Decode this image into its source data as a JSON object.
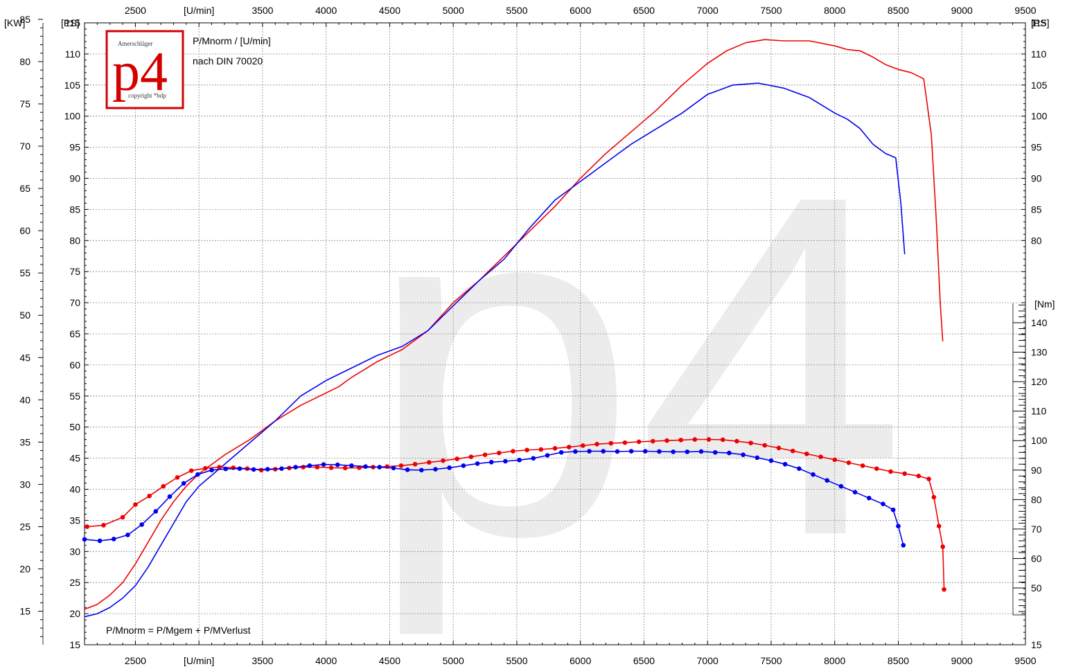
{
  "chart_data": {
    "type": "line",
    "annotations": {
      "formula_title": "P/Mnorm / [U/min]",
      "norm": "nach DIN 70020",
      "equation": "P/Mnorm = P/Mgem + P/MVerlust"
    },
    "logo": {
      "brand": "Amerschläger",
      "mark": "p4",
      "copyright": "copyright *bdp"
    },
    "watermark": "p4",
    "x_axis": {
      "label": "[U/min]",
      "range": [
        2100,
        9500
      ],
      "ticks": [
        2500,
        3000,
        3500,
        4000,
        4500,
        5000,
        5500,
        6000,
        6500,
        7000,
        7500,
        8000,
        8500,
        9000,
        9500
      ],
      "tick_labels": [
        "2500",
        "[U/min]",
        "3500",
        "4000",
        "4500",
        "5000",
        "5500",
        "6000",
        "6500",
        "7000",
        "7500",
        "8000",
        "8500",
        "9000",
        "9500"
      ]
    },
    "y_axis_ps": {
      "label": "[PS]",
      "range": [
        15,
        115
      ],
      "ticks": [
        15,
        20,
        25,
        30,
        35,
        40,
        45,
        50,
        55,
        60,
        65,
        70,
        75,
        80,
        85,
        90,
        95,
        100,
        105,
        110,
        115
      ],
      "tick_labels_left": [
        "15",
        "20",
        "25",
        "30",
        "35",
        "40",
        "45",
        "50",
        "55",
        "60",
        "65",
        "70",
        "75",
        "80",
        "85",
        "90",
        "95",
        "100",
        "105",
        "110",
        "115"
      ],
      "tick_labels_right": [
        "15",
        "",
        "",
        "",
        "",
        "",
        "",
        "",
        "",
        "",
        "",
        "",
        "",
        "80",
        "85",
        "90",
        "95",
        "100",
        "105",
        "110",
        "115"
      ]
    },
    "y_axis_kw": {
      "label": "[KW]",
      "ticks": [
        15,
        20,
        25,
        30,
        35,
        40,
        45,
        50,
        55,
        60,
        65,
        70,
        75,
        80,
        85
      ],
      "tick_labels": [
        "15",
        "20",
        "25",
        "30",
        "35",
        "40",
        "45",
        "50",
        "55",
        "60",
        "65",
        "70",
        "75",
        "80",
        "85"
      ]
    },
    "y_axis_nm": {
      "label": "[Nm]",
      "ticks": [
        50,
        60,
        70,
        80,
        90,
        100,
        110,
        120,
        130,
        140
      ],
      "tick_labels": [
        "50",
        "60",
        "70",
        "80",
        "90",
        "100",
        "110",
        "120",
        "130",
        "140"
      ]
    },
    "grid": true,
    "colors": {
      "red": "#ee0000",
      "blue": "#0000ee",
      "watermark": "#ececec",
      "logo": "#d40000"
    },
    "series": [
      {
        "quantity": "power",
        "unit": "PS",
        "color": "#ee0000",
        "markers": false,
        "points": [
          [
            2100,
            20.7
          ],
          [
            2200,
            21.5
          ],
          [
            2300,
            23.0
          ],
          [
            2400,
            25.0
          ],
          [
            2500,
            28.0
          ],
          [
            2600,
            31.5
          ],
          [
            2700,
            35.0
          ],
          [
            2800,
            38.0
          ],
          [
            2900,
            40.5
          ],
          [
            3000,
            42.5
          ],
          [
            3200,
            45.5
          ],
          [
            3400,
            48.0
          ],
          [
            3600,
            51.0
          ],
          [
            3800,
            53.5
          ],
          [
            4000,
            55.5
          ],
          [
            4100,
            56.5
          ],
          [
            4200,
            58.0
          ],
          [
            4400,
            60.5
          ],
          [
            4600,
            62.5
          ],
          [
            4800,
            65.5
          ],
          [
            5000,
            70.0
          ],
          [
            5200,
            73.5
          ],
          [
            5400,
            77.5
          ],
          [
            5600,
            81.5
          ],
          [
            5800,
            85.5
          ],
          [
            6000,
            90.0
          ],
          [
            6200,
            94.0
          ],
          [
            6400,
            97.5
          ],
          [
            6600,
            101.0
          ],
          [
            6800,
            105.0
          ],
          [
            7000,
            108.5
          ],
          [
            7150,
            110.5
          ],
          [
            7300,
            111.8
          ],
          [
            7450,
            112.3
          ],
          [
            7600,
            112.1
          ],
          [
            7800,
            112.1
          ],
          [
            8000,
            111.3
          ],
          [
            8100,
            110.7
          ],
          [
            8200,
            110.5
          ],
          [
            8300,
            109.5
          ],
          [
            8400,
            108.3
          ],
          [
            8500,
            107.5
          ],
          [
            8600,
            107.0
          ],
          [
            8700,
            106.0
          ],
          [
            8760,
            97.0
          ],
          [
            8800,
            83.0
          ],
          [
            8830,
            70.0
          ],
          [
            8850,
            63.8
          ]
        ]
      },
      {
        "quantity": "power",
        "unit": "PS",
        "color": "#0000ee",
        "markers": false,
        "points": [
          [
            2100,
            19.5
          ],
          [
            2200,
            20.0
          ],
          [
            2300,
            21.0
          ],
          [
            2400,
            22.5
          ],
          [
            2500,
            24.5
          ],
          [
            2600,
            27.5
          ],
          [
            2700,
            31.0
          ],
          [
            2800,
            34.5
          ],
          [
            2900,
            38.0
          ],
          [
            3000,
            40.5
          ],
          [
            3200,
            44.0
          ],
          [
            3400,
            47.5
          ],
          [
            3600,
            51.0
          ],
          [
            3800,
            55.0
          ],
          [
            4000,
            57.5
          ],
          [
            4200,
            59.5
          ],
          [
            4400,
            61.5
          ],
          [
            4600,
            63.0
          ],
          [
            4800,
            65.5
          ],
          [
            5000,
            69.5
          ],
          [
            5200,
            73.5
          ],
          [
            5400,
            77.0
          ],
          [
            5600,
            82.0
          ],
          [
            5800,
            86.5
          ],
          [
            6000,
            89.5
          ],
          [
            6200,
            92.5
          ],
          [
            6400,
            95.5
          ],
          [
            6600,
            98.0
          ],
          [
            6800,
            100.5
          ],
          [
            7000,
            103.5
          ],
          [
            7200,
            105.0
          ],
          [
            7400,
            105.3
          ],
          [
            7600,
            104.5
          ],
          [
            7800,
            103.0
          ],
          [
            8000,
            100.5
          ],
          [
            8100,
            99.5
          ],
          [
            8200,
            98.0
          ],
          [
            8300,
            95.5
          ],
          [
            8400,
            94.0
          ],
          [
            8480,
            93.3
          ],
          [
            8520,
            86.0
          ],
          [
            8550,
            77.8
          ]
        ]
      },
      {
        "quantity": "torque",
        "unit": "Nm",
        "color": "#ee0000",
        "markers": true,
        "points": [
          [
            2120,
            70.8
          ],
          [
            2250,
            71.3
          ],
          [
            2400,
            74.0
          ],
          [
            2500,
            78.3
          ],
          [
            2610,
            81.2
          ],
          [
            2720,
            84.5
          ],
          [
            2830,
            87.5
          ],
          [
            2940,
            89.8
          ],
          [
            3050,
            90.6
          ],
          [
            3160,
            91.0
          ],
          [
            3270,
            90.8
          ],
          [
            3380,
            90.5
          ],
          [
            3490,
            90.0
          ],
          [
            3600,
            90.3
          ],
          [
            3710,
            90.7
          ],
          [
            3820,
            91.0
          ],
          [
            3930,
            91.0
          ],
          [
            4040,
            90.8
          ],
          [
            4150,
            90.7
          ],
          [
            4260,
            90.8
          ],
          [
            4370,
            91.0
          ],
          [
            4480,
            91.2
          ],
          [
            4590,
            91.5
          ],
          [
            4700,
            92.0
          ],
          [
            4810,
            92.6
          ],
          [
            4920,
            93.2
          ],
          [
            5030,
            93.8
          ],
          [
            5140,
            94.5
          ],
          [
            5250,
            95.2
          ],
          [
            5360,
            95.8
          ],
          [
            5470,
            96.4
          ],
          [
            5580,
            96.8
          ],
          [
            5690,
            97.0
          ],
          [
            5800,
            97.4
          ],
          [
            5910,
            97.8
          ],
          [
            6020,
            98.3
          ],
          [
            6130,
            98.8
          ],
          [
            6240,
            99.1
          ],
          [
            6350,
            99.3
          ],
          [
            6460,
            99.6
          ],
          [
            6570,
            99.8
          ],
          [
            6680,
            100.0
          ],
          [
            6790,
            100.2
          ],
          [
            6900,
            100.4
          ],
          [
            7010,
            100.4
          ],
          [
            7120,
            100.3
          ],
          [
            7230,
            99.8
          ],
          [
            7340,
            99.2
          ],
          [
            7450,
            98.4
          ],
          [
            7560,
            97.5
          ],
          [
            7670,
            96.5
          ],
          [
            7780,
            95.5
          ],
          [
            7890,
            94.5
          ],
          [
            8000,
            93.5
          ],
          [
            8110,
            92.5
          ],
          [
            8220,
            91.5
          ],
          [
            8330,
            90.5
          ],
          [
            8440,
            89.5
          ],
          [
            8550,
            88.8
          ],
          [
            8660,
            88.0
          ],
          [
            8740,
            87.0
          ],
          [
            8780,
            80.8
          ],
          [
            8820,
            71.0
          ],
          [
            8850,
            64.0
          ],
          [
            8860,
            49.5
          ]
        ]
      },
      {
        "quantity": "torque",
        "unit": "Nm",
        "color": "#0000ee",
        "markers": true,
        "points": [
          [
            2100,
            66.5
          ],
          [
            2220,
            66.0
          ],
          [
            2330,
            66.6
          ],
          [
            2440,
            68.0
          ],
          [
            2550,
            71.5
          ],
          [
            2660,
            76.0
          ],
          [
            2770,
            81.0
          ],
          [
            2880,
            85.5
          ],
          [
            2990,
            88.5
          ],
          [
            3100,
            90.0
          ],
          [
            3210,
            90.4
          ],
          [
            3320,
            90.5
          ],
          [
            3430,
            90.2
          ],
          [
            3540,
            90.3
          ],
          [
            3650,
            90.5
          ],
          [
            3760,
            91.0
          ],
          [
            3870,
            91.5
          ],
          [
            3980,
            91.9
          ],
          [
            4090,
            91.8
          ],
          [
            4200,
            91.5
          ],
          [
            4310,
            91.2
          ],
          [
            4420,
            91.0
          ],
          [
            4530,
            90.7
          ],
          [
            4640,
            90.1
          ],
          [
            4750,
            90.0
          ],
          [
            4860,
            90.3
          ],
          [
            4970,
            90.8
          ],
          [
            5080,
            91.5
          ],
          [
            5190,
            92.2
          ],
          [
            5300,
            92.7
          ],
          [
            5410,
            93.0
          ],
          [
            5520,
            93.4
          ],
          [
            5630,
            94.0
          ],
          [
            5740,
            95.0
          ],
          [
            5850,
            96.0
          ],
          [
            5960,
            96.3
          ],
          [
            6070,
            96.4
          ],
          [
            6180,
            96.4
          ],
          [
            6290,
            96.3
          ],
          [
            6400,
            96.4
          ],
          [
            6510,
            96.4
          ],
          [
            6620,
            96.3
          ],
          [
            6730,
            96.2
          ],
          [
            6840,
            96.2
          ],
          [
            6950,
            96.3
          ],
          [
            7060,
            96.0
          ],
          [
            7170,
            95.8
          ],
          [
            7280,
            95.2
          ],
          [
            7390,
            94.2
          ],
          [
            7500,
            93.2
          ],
          [
            7610,
            92.0
          ],
          [
            7720,
            90.5
          ],
          [
            7830,
            88.5
          ],
          [
            7940,
            86.5
          ],
          [
            8050,
            84.5
          ],
          [
            8160,
            82.5
          ],
          [
            8270,
            80.5
          ],
          [
            8380,
            78.5
          ],
          [
            8460,
            76.5
          ],
          [
            8500,
            71.0
          ],
          [
            8540,
            64.5
          ]
        ]
      }
    ]
  }
}
